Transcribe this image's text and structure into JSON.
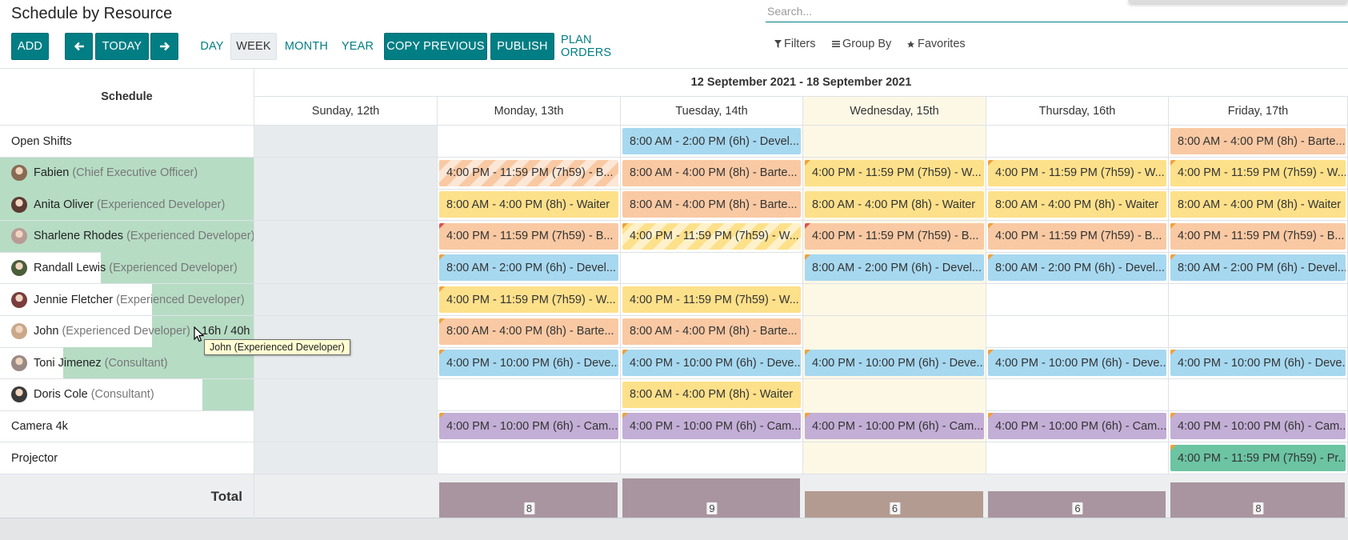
{
  "page_title": "Schedule by Resource",
  "search": {
    "placeholder": "Search..."
  },
  "toolbar": {
    "add": "ADD",
    "today": "TODAY",
    "scales": [
      "DAY",
      "WEEK",
      "MONTH",
      "YEAR"
    ],
    "active_scale": "WEEK",
    "copy_previous": "COPY PREVIOUS",
    "publish": "PUBLISH",
    "plan_orders": "PLAN ORDERS"
  },
  "search_panel": {
    "filters": "Filters",
    "group_by": "Group By",
    "favorites": "Favorites"
  },
  "gantt": {
    "schedule_header": "Schedule",
    "range": "12 September 2021 - 18 September 2021",
    "days": [
      "Sunday, 12th",
      "Monday, 13th",
      "Tuesday, 14th",
      "Wednesday, 15th",
      "Thursday, 16th",
      "Friday, 17th"
    ],
    "today_index": 3,
    "rows": [
      {
        "name": "Open Shifts",
        "job": "",
        "avatar": false,
        "load": 0,
        "shifts": [
          null,
          null,
          {
            "text": "8:00 AM - 2:00 PM (6h) - Devel...",
            "color": "blue"
          },
          null,
          null,
          {
            "text": "8:00 AM - 4:00 PM (8h) - Barte...",
            "color": "orange"
          }
        ]
      },
      {
        "name": "Fabien",
        "job": "(Chief Executive Officer)",
        "avatar": true,
        "avatar_color": "#8a6a52",
        "load": 1.0,
        "shifts": [
          null,
          {
            "text": "4:00 PM - 11:59 PM (7h59) - B...",
            "color": "orange",
            "striped": true
          },
          {
            "text": "8:00 AM - 4:00 PM (8h) - Barte...",
            "color": "orange"
          },
          {
            "text": "4:00 PM - 11:59 PM (7h59) - W...",
            "color": "yellow",
            "corner": "orange"
          },
          {
            "text": "4:00 PM - 11:59 PM (7h59) - W...",
            "color": "yellow",
            "corner": "orange"
          },
          {
            "text": "4:00 PM - 11:59 PM (7h59) - W...",
            "color": "yellow",
            "corner": "orange"
          }
        ]
      },
      {
        "name": "Anita Oliver",
        "job": "(Experienced Developer)",
        "avatar": true,
        "avatar_color": "#5c3b33",
        "load": 1.0,
        "shifts": [
          null,
          {
            "text": "8:00 AM - 4:00 PM (8h) - Waiter",
            "color": "yellow"
          },
          {
            "text": "8:00 AM - 4:00 PM (8h) - Barte...",
            "color": "orange"
          },
          {
            "text": "8:00 AM - 4:00 PM (8h) - Waiter",
            "color": "yellow"
          },
          {
            "text": "8:00 AM - 4:00 PM (8h) - Waiter",
            "color": "yellow"
          },
          {
            "text": "8:00 AM - 4:00 PM (8h) - Waiter",
            "color": "yellow"
          }
        ]
      },
      {
        "name": "Sharlene Rhodes",
        "job": "(Experienced Developer)",
        "avatar": true,
        "avatar_color": "#b89b94",
        "load": 1.0,
        "shifts": [
          null,
          {
            "text": "4:00 PM - 11:59 PM (7h59) - B...",
            "color": "orange",
            "corner": "red"
          },
          {
            "text": "4:00 PM - 11:59 PM (7h59) - W...",
            "color": "yellow",
            "striped": true,
            "corner": "orange"
          },
          {
            "text": "4:00 PM - 11:59 PM (7h59) - B...",
            "color": "orange",
            "corner": "red"
          },
          {
            "text": "4:00 PM - 11:59 PM (7h59) - B...",
            "color": "orange",
            "corner": "orange"
          },
          {
            "text": "4:00 PM - 11:59 PM (7h59) - B...",
            "color": "orange",
            "corner": "orange"
          }
        ]
      },
      {
        "name": "Randall Lewis",
        "job": "(Experienced Developer)",
        "avatar": true,
        "avatar_color": "#4a5e3a",
        "load": 0.6,
        "shifts": [
          null,
          {
            "text": "8:00 AM - 2:00 PM (6h) - Devel...",
            "color": "blue",
            "corner": "orange"
          },
          null,
          {
            "text": "8:00 AM - 2:00 PM (6h) - Devel...",
            "color": "blue",
            "corner": "orange"
          },
          {
            "text": "8:00 AM - 2:00 PM (6h) - Devel...",
            "color": "blue",
            "corner": "orange"
          },
          {
            "text": "8:00 AM - 2:00 PM (6h) - Devel...",
            "color": "blue",
            "corner": "orange"
          }
        ]
      },
      {
        "name": "Jennie Fletcher",
        "job": "(Experienced Developer)",
        "avatar": true,
        "avatar_color": "#7a3d3d",
        "load": 0.4,
        "shifts": [
          null,
          {
            "text": "4:00 PM - 11:59 PM (7h59) - W...",
            "color": "yellow",
            "corner": "orange"
          },
          {
            "text": "4:00 PM - 11:59 PM (7h59) - W...",
            "color": "yellow"
          },
          null,
          null,
          null
        ]
      },
      {
        "name": "John",
        "job": "(Experienced Developer)",
        "avatar": true,
        "avatar_color": "#c9a88a",
        "load": 0.4,
        "hours": "16h / 40h",
        "shifts": [
          null,
          {
            "text": "8:00 AM - 4:00 PM (8h) - Barte...",
            "color": "orange",
            "corner": "orange"
          },
          {
            "text": "8:00 AM - 4:00 PM (8h) - Barte...",
            "color": "orange"
          },
          null,
          null,
          null
        ]
      },
      {
        "name": "Toni Jimenez",
        "job": "(Consultant)",
        "avatar": true,
        "avatar_color": "#9a8a84",
        "load": 0.75,
        "shifts": [
          null,
          {
            "text": "4:00 PM - 10:00 PM (6h) - Deve...",
            "color": "blue",
            "corner": "orange"
          },
          {
            "text": "4:00 PM - 10:00 PM (6h) - Deve...",
            "color": "blue",
            "corner": "orange"
          },
          {
            "text": "4:00 PM - 10:00 PM (6h) - Deve...",
            "color": "blue",
            "corner": "orange"
          },
          {
            "text": "4:00 PM - 10:00 PM (6h) - Deve...",
            "color": "blue",
            "corner": "orange"
          },
          {
            "text": "4:00 PM - 10:00 PM (6h) - Deve...",
            "color": "blue",
            "corner": "orange"
          }
        ]
      },
      {
        "name": "Doris Cole",
        "job": "(Consultant)",
        "avatar": true,
        "avatar_color": "#3a3a3a",
        "load": 0.2,
        "shifts": [
          null,
          null,
          {
            "text": "8:00 AM - 4:00 PM (8h) - Waiter",
            "color": "yellow"
          },
          null,
          null,
          null
        ]
      },
      {
        "name": "Camera 4k",
        "job": "",
        "avatar": false,
        "load": 0,
        "shifts": [
          null,
          {
            "text": "4:00 PM - 10:00 PM (6h) - Cam...",
            "color": "purple",
            "corner": "orange"
          },
          {
            "text": "4:00 PM - 10:00 PM (6h) - Cam...",
            "color": "purple",
            "corner": "orange"
          },
          {
            "text": "4:00 PM - 10:00 PM (6h) - Cam...",
            "color": "purple",
            "corner": "orange"
          },
          {
            "text": "4:00 PM - 10:00 PM (6h) - Cam...",
            "color": "purple",
            "corner": "orange"
          },
          {
            "text": "4:00 PM - 10:00 PM (6h) - Cam...",
            "color": "purple",
            "corner": "orange"
          }
        ]
      },
      {
        "name": "Projector",
        "job": "",
        "avatar": false,
        "load": 0,
        "shifts": [
          null,
          null,
          null,
          null,
          null,
          {
            "text": "4:00 PM - 11:59 PM (7h59) - Pr...",
            "color": "green",
            "corner": "orange"
          }
        ]
      }
    ],
    "total_label": "Total",
    "totals": [
      null,
      8,
      9,
      6,
      6,
      8
    ],
    "tooltip": "John (Experienced Developer)"
  },
  "colors": {
    "primary": "#017e84",
    "blue": "#a6d8f0",
    "orange": "#f9c9a3",
    "yellow": "#fde08a",
    "purple": "#c3aed6",
    "green": "#6cc4a3",
    "red_corner": "#d9534f",
    "orange_corner": "#f0a13a"
  }
}
